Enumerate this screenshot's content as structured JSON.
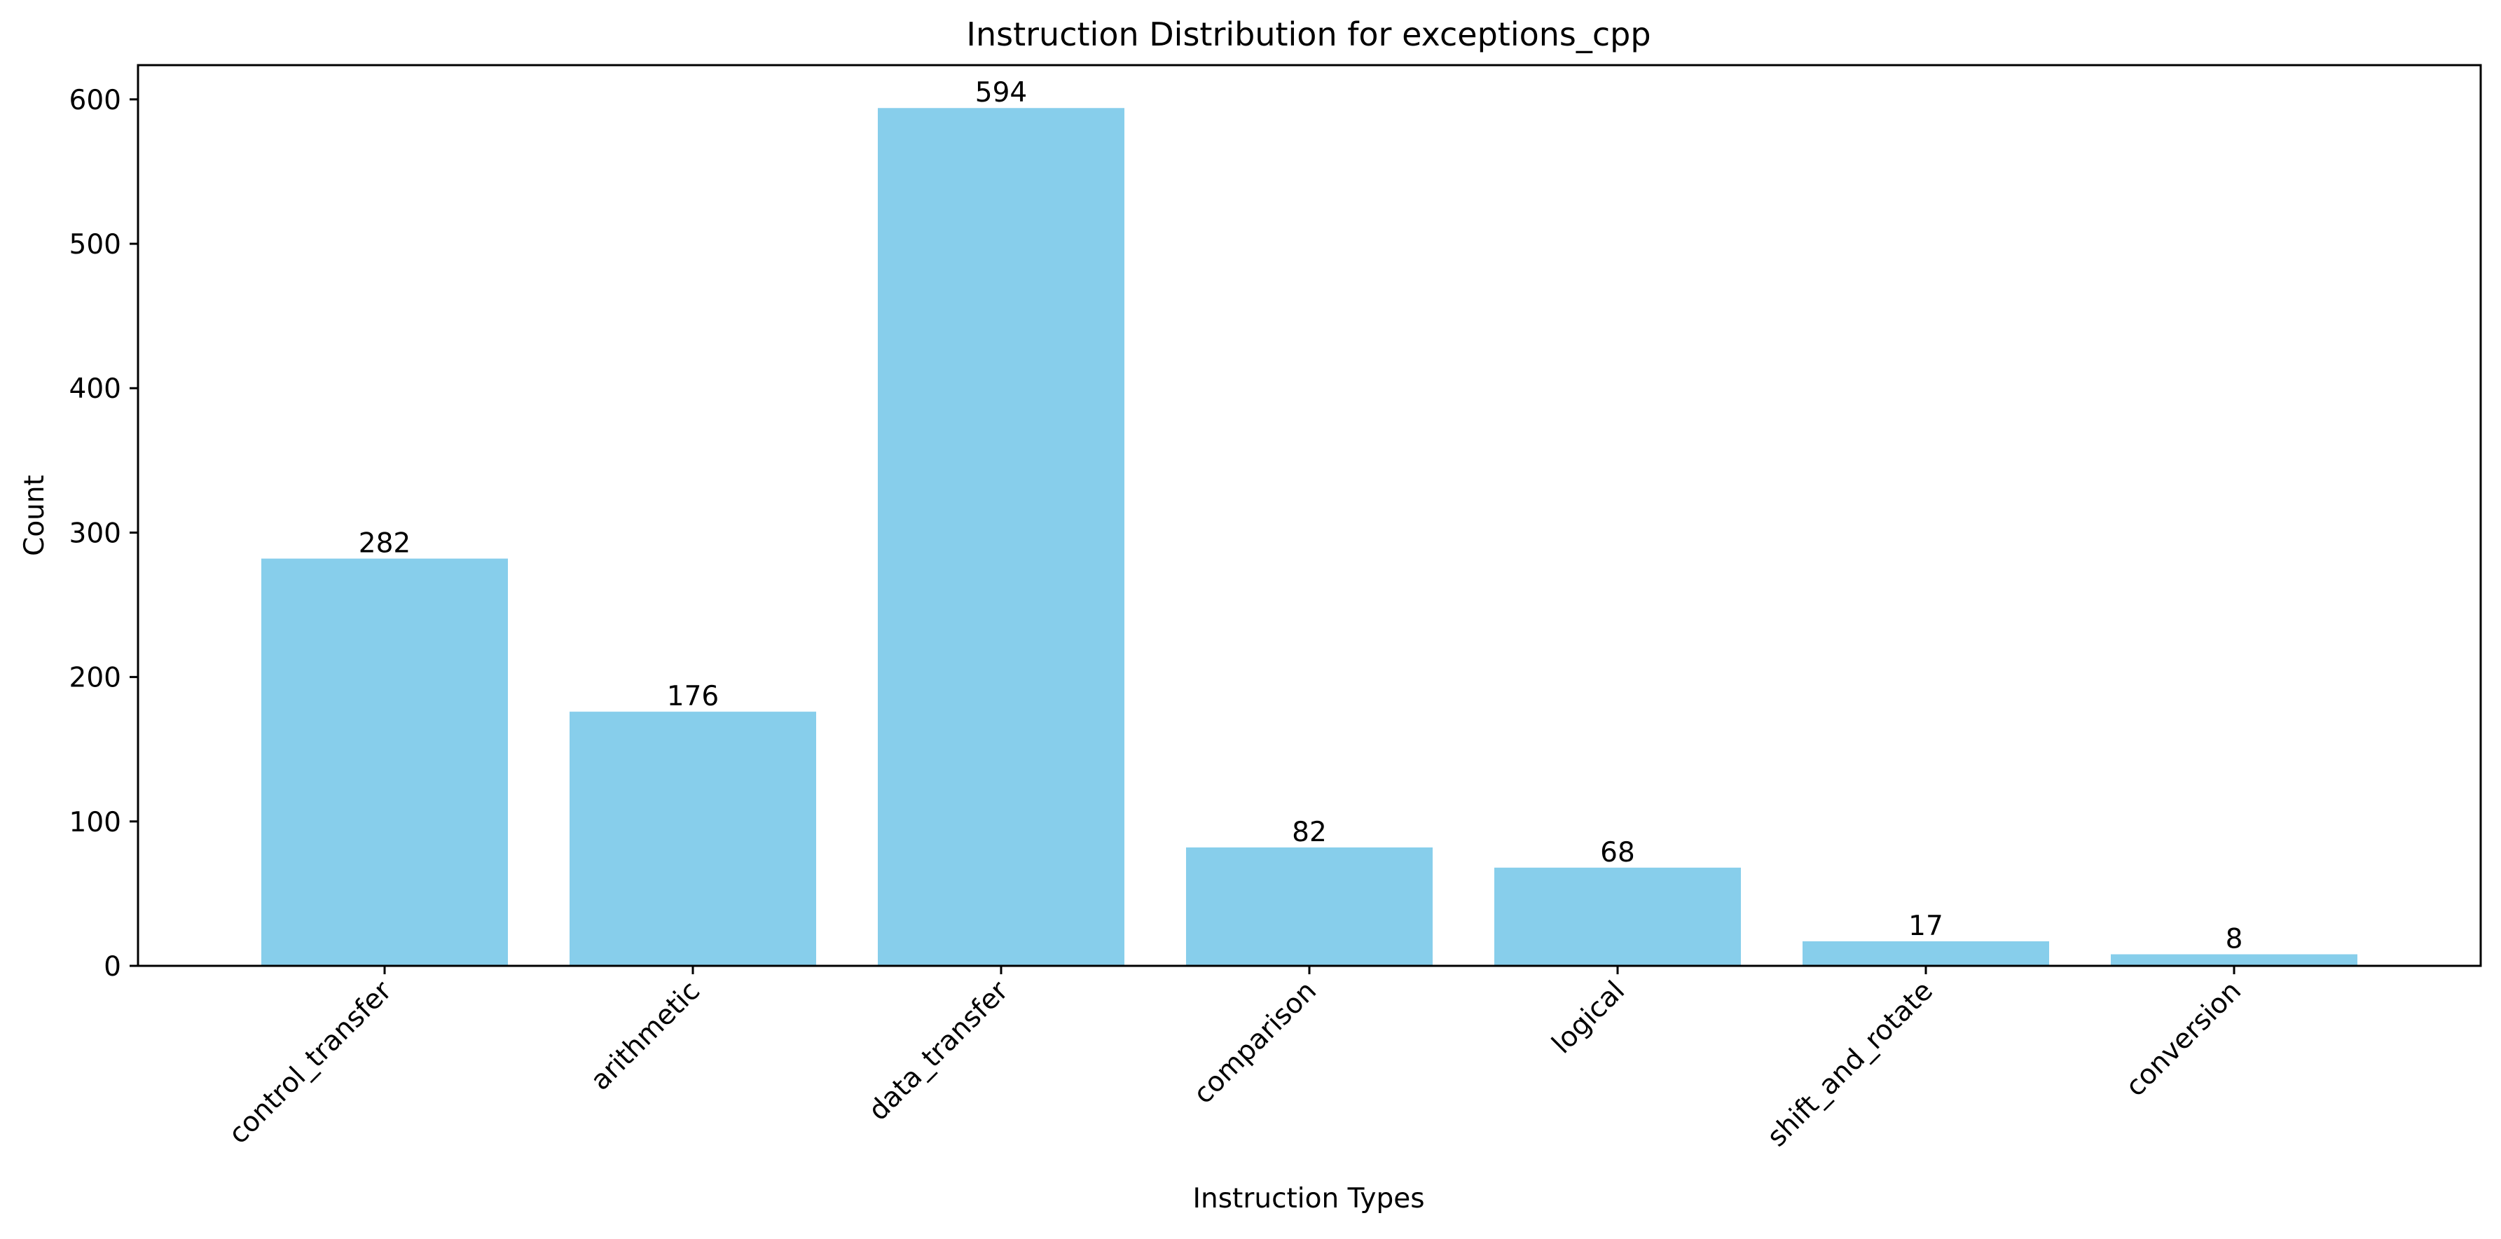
{
  "chart_data": {
    "type": "bar",
    "title": "Instruction Distribution for exceptions_cpp",
    "xlabel": "Instruction Types",
    "ylabel": "Count",
    "categories": [
      "control_transfer",
      "arithmetic",
      "data_transfer",
      "comparison",
      "logical",
      "shift_and_rotate",
      "conversion"
    ],
    "values": [
      282,
      176,
      594,
      82,
      68,
      17,
      8
    ],
    "data_labels": [
      "282",
      "176",
      "594",
      "82",
      "68",
      "17",
      "8"
    ],
    "ylim": [
      0,
      623.7
    ],
    "yticks": [
      0,
      100,
      200,
      300,
      400,
      500,
      600
    ],
    "ytick_labels": [
      "0",
      "100",
      "200",
      "300",
      "400",
      "500",
      "600"
    ],
    "grid": false,
    "legend": "none",
    "bar_color": "#87CEEB",
    "axis_color": "#000000"
  }
}
